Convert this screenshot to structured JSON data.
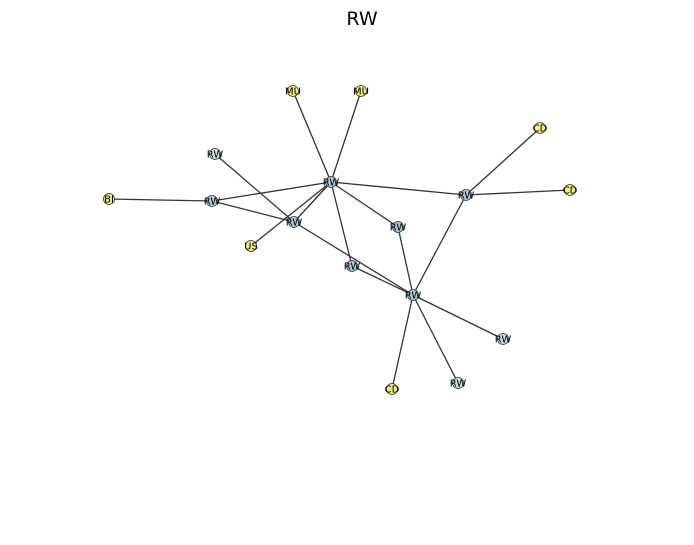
{
  "title": "RW",
  "colors": {
    "central": "#a6cbd9",
    "peripheral": "#cfe1ea",
    "leaf": "#f0f07a",
    "edge": "#333333"
  },
  "nodes": [
    {
      "id": "hub",
      "label": "RW",
      "color": "central"
    },
    {
      "id": "rw_mid",
      "label": "RW",
      "color": "central"
    },
    {
      "id": "rw_left",
      "label": "RW",
      "color": "central"
    },
    {
      "id": "rw_right",
      "label": "RW",
      "color": "central"
    },
    {
      "id": "rw_low",
      "label": "RW",
      "color": "central"
    },
    {
      "id": "rw_center",
      "label": "RW",
      "color": "central"
    },
    {
      "id": "rw_small",
      "label": "RW",
      "color": "central"
    },
    {
      "id": "rw_top_left",
      "label": "RW",
      "color": "peripheral"
    },
    {
      "id": "rw_low_right",
      "label": "RW",
      "color": "peripheral"
    },
    {
      "id": "rw_bottom",
      "label": "RW",
      "color": "peripheral"
    },
    {
      "id": "mu1",
      "label": "MU",
      "color": "leaf"
    },
    {
      "id": "mu2",
      "label": "MU",
      "color": "leaf"
    },
    {
      "id": "bi",
      "label": "BI",
      "color": "leaf"
    },
    {
      "id": "us",
      "label": "US",
      "color": "leaf"
    },
    {
      "id": "cd1",
      "label": "CD",
      "color": "leaf"
    },
    {
      "id": "cd2",
      "label": "CD",
      "color": "leaf"
    },
    {
      "id": "cd3",
      "label": "CD",
      "color": "leaf"
    }
  ],
  "edges": [
    [
      "hub",
      "mu1"
    ],
    [
      "hub",
      "mu2"
    ],
    [
      "hub",
      "rw_left"
    ],
    [
      "hub",
      "rw_mid"
    ],
    [
      "hub",
      "us"
    ],
    [
      "hub",
      "rw_right"
    ],
    [
      "hub",
      "rw_small"
    ],
    [
      "hub",
      "rw_center"
    ],
    [
      "rw_top_left",
      "rw_mid"
    ],
    [
      "bi",
      "rw_left"
    ],
    [
      "rw_left",
      "rw_mid"
    ],
    [
      "rw_mid",
      "rw_low"
    ],
    [
      "rw_right",
      "cd1"
    ],
    [
      "rw_right",
      "cd2"
    ],
    [
      "rw_right",
      "rw_low"
    ],
    [
      "rw_small",
      "rw_low"
    ],
    [
      "rw_center",
      "rw_low"
    ],
    [
      "rw_low",
      "rw_low_right"
    ],
    [
      "rw_low",
      "rw_bottom"
    ],
    [
      "rw_low",
      "cd3"
    ]
  ]
}
